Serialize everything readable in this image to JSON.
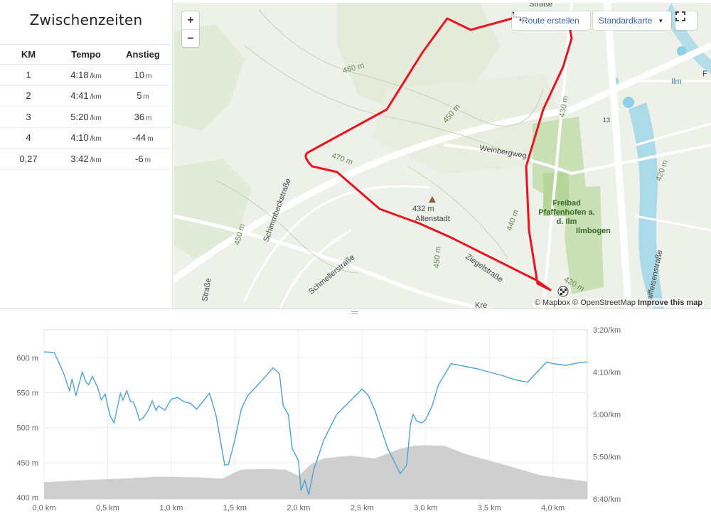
{
  "splits": {
    "title": "Zwischenzeiten",
    "headers": [
      "KM",
      "Tempo",
      "Anstieg"
    ],
    "pace_unit": "/km",
    "elev_unit": "m",
    "rows": [
      {
        "km": "1",
        "pace": "4:18",
        "elev": "10"
      },
      {
        "km": "2",
        "pace": "4:41",
        "elev": "5"
      },
      {
        "km": "3",
        "pace": "5:20",
        "elev": "36"
      },
      {
        "km": "4",
        "pace": "4:10",
        "elev": "-44"
      },
      {
        "km": "0,27",
        "pace": "3:42",
        "elev": "-6"
      }
    ]
  },
  "map": {
    "zoom_in": "+",
    "zoom_out": "−",
    "route_button": "Route erstellen",
    "style_button": "Standardkarte",
    "attribution_mapbox": "© Mapbox",
    "attribution_osm": "© OpenStreetMap",
    "attribution_improve": "Improve this map",
    "labels": {
      "summit_elev": "432 m",
      "summit_name": "Altenstadt",
      "weinbergweg": "Weinbergweg",
      "freibad": "Freibad Pfaffenhofen a. d. Ilm",
      "ilmbogen": "Ilmbogen",
      "schimmbeck": "Schimmbeckstraße",
      "schmeller": "Schmellerstraße",
      "ziegelstr": "Ziegelstraße",
      "raiffeisen": "Raiffeisenstraße",
      "ilm": "Ilm",
      "c460": "460 m",
      "c450a": "450 m",
      "c470": "470 m",
      "c450b": "450 m",
      "c440": "440 m",
      "c430a": "430 m",
      "c420a": "420 m",
      "c420b": "420 m",
      "c450c": "450 m",
      "road13": "13",
      "strasse_top": "Straße",
      "strasse_left": "Straße",
      "kre": "Kre",
      "f": "F"
    },
    "colors": {
      "route": "#e8141f",
      "park": "#c9e0b5",
      "water": "#8fd0e8"
    }
  },
  "chart_data": {
    "type": "line",
    "x_axis": {
      "ticks": [
        "0,0 km",
        "0,5 km",
        "1,0 km",
        "1,5 km",
        "2,0 km",
        "2,5 km",
        "3,0 km",
        "3,5 km",
        "4,0 km"
      ],
      "values": [
        0,
        0.5,
        1.0,
        1.5,
        2.0,
        2.5,
        3.0,
        3.5,
        4.0
      ],
      "range": [
        0,
        4.27
      ]
    },
    "y_left": {
      "ticks": [
        "400 m",
        "450 m",
        "500 m",
        "550 m",
        "600 m"
      ],
      "values": [
        400,
        450,
        500,
        550,
        600
      ],
      "range": [
        398,
        640
      ]
    },
    "y_right": {
      "ticks": [
        "3:20/km",
        "4:10/km",
        "5:00/km",
        "5:50/km",
        "6:40/km"
      ],
      "values": [
        200,
        250,
        300,
        350,
        400
      ]
    },
    "grid": true,
    "series": [
      {
        "kind": "elevation",
        "color": "#cfcfcf",
        "x": [
          0,
          0.3,
          0.6,
          0.9,
          1.2,
          1.4,
          1.5,
          1.55,
          1.7,
          1.9,
          2.0,
          2.1,
          2.2,
          2.4,
          2.6,
          2.8,
          2.9,
          3.0,
          3.15,
          3.3,
          3.6,
          3.9,
          4.1,
          4.27
        ],
        "y": [
          422,
          425,
          427,
          430,
          429,
          427,
          436,
          440,
          441,
          440,
          431,
          448,
          456,
          460,
          456,
          470,
          474,
          475,
          474,
          463,
          448,
          432,
          427,
          423
        ]
      },
      {
        "kind": "pace",
        "color": "#4aa3d8",
        "x": [
          0,
          0.08,
          0.15,
          0.2,
          0.22,
          0.25,
          0.3,
          0.33,
          0.35,
          0.38,
          0.42,
          0.45,
          0.48,
          0.5,
          0.52,
          0.55,
          0.6,
          0.62,
          0.65,
          0.68,
          0.7,
          0.72,
          0.75,
          0.78,
          0.82,
          0.85,
          0.88,
          0.9,
          0.95,
          1.0,
          1.05,
          1.1,
          1.15,
          1.2,
          1.3,
          1.35,
          1.42,
          1.45,
          1.5,
          1.55,
          1.6,
          1.7,
          1.8,
          1.85,
          1.88,
          1.92,
          1.95,
          2.0,
          2.02,
          2.05,
          2.08,
          2.12,
          2.2,
          2.3,
          2.4,
          2.5,
          2.55,
          2.6,
          2.7,
          2.8,
          2.85,
          2.88,
          2.9,
          2.93,
          2.97,
          3.0,
          3.05,
          3.1,
          3.2,
          3.3,
          3.4,
          3.5,
          3.6,
          3.7,
          3.8,
          3.9,
          3.95,
          4.0,
          4.1,
          4.2,
          4.27
        ],
        "y": [
          226,
          227,
          250,
          272,
          258,
          278,
          250,
          262,
          265,
          255,
          268,
          283,
          276,
          290,
          302,
          310,
          275,
          283,
          272,
          285,
          285,
          292,
          307,
          304,
          295,
          284,
          295,
          290,
          295,
          282,
          280,
          285,
          287,
          294,
          275,
          300,
          360,
          359,
          330,
          294,
          278,
          262,
          245,
          252,
          290,
          300,
          340,
          355,
          390,
          378,
          395,
          365,
          330,
          300,
          285,
          270,
          278,
          295,
          340,
          370,
          360,
          312,
          300,
          308,
          310,
          306,
          290,
          265,
          240,
          243,
          246,
          250,
          254,
          259,
          262,
          246,
          238,
          240,
          242,
          239,
          238
        ]
      }
    ]
  }
}
